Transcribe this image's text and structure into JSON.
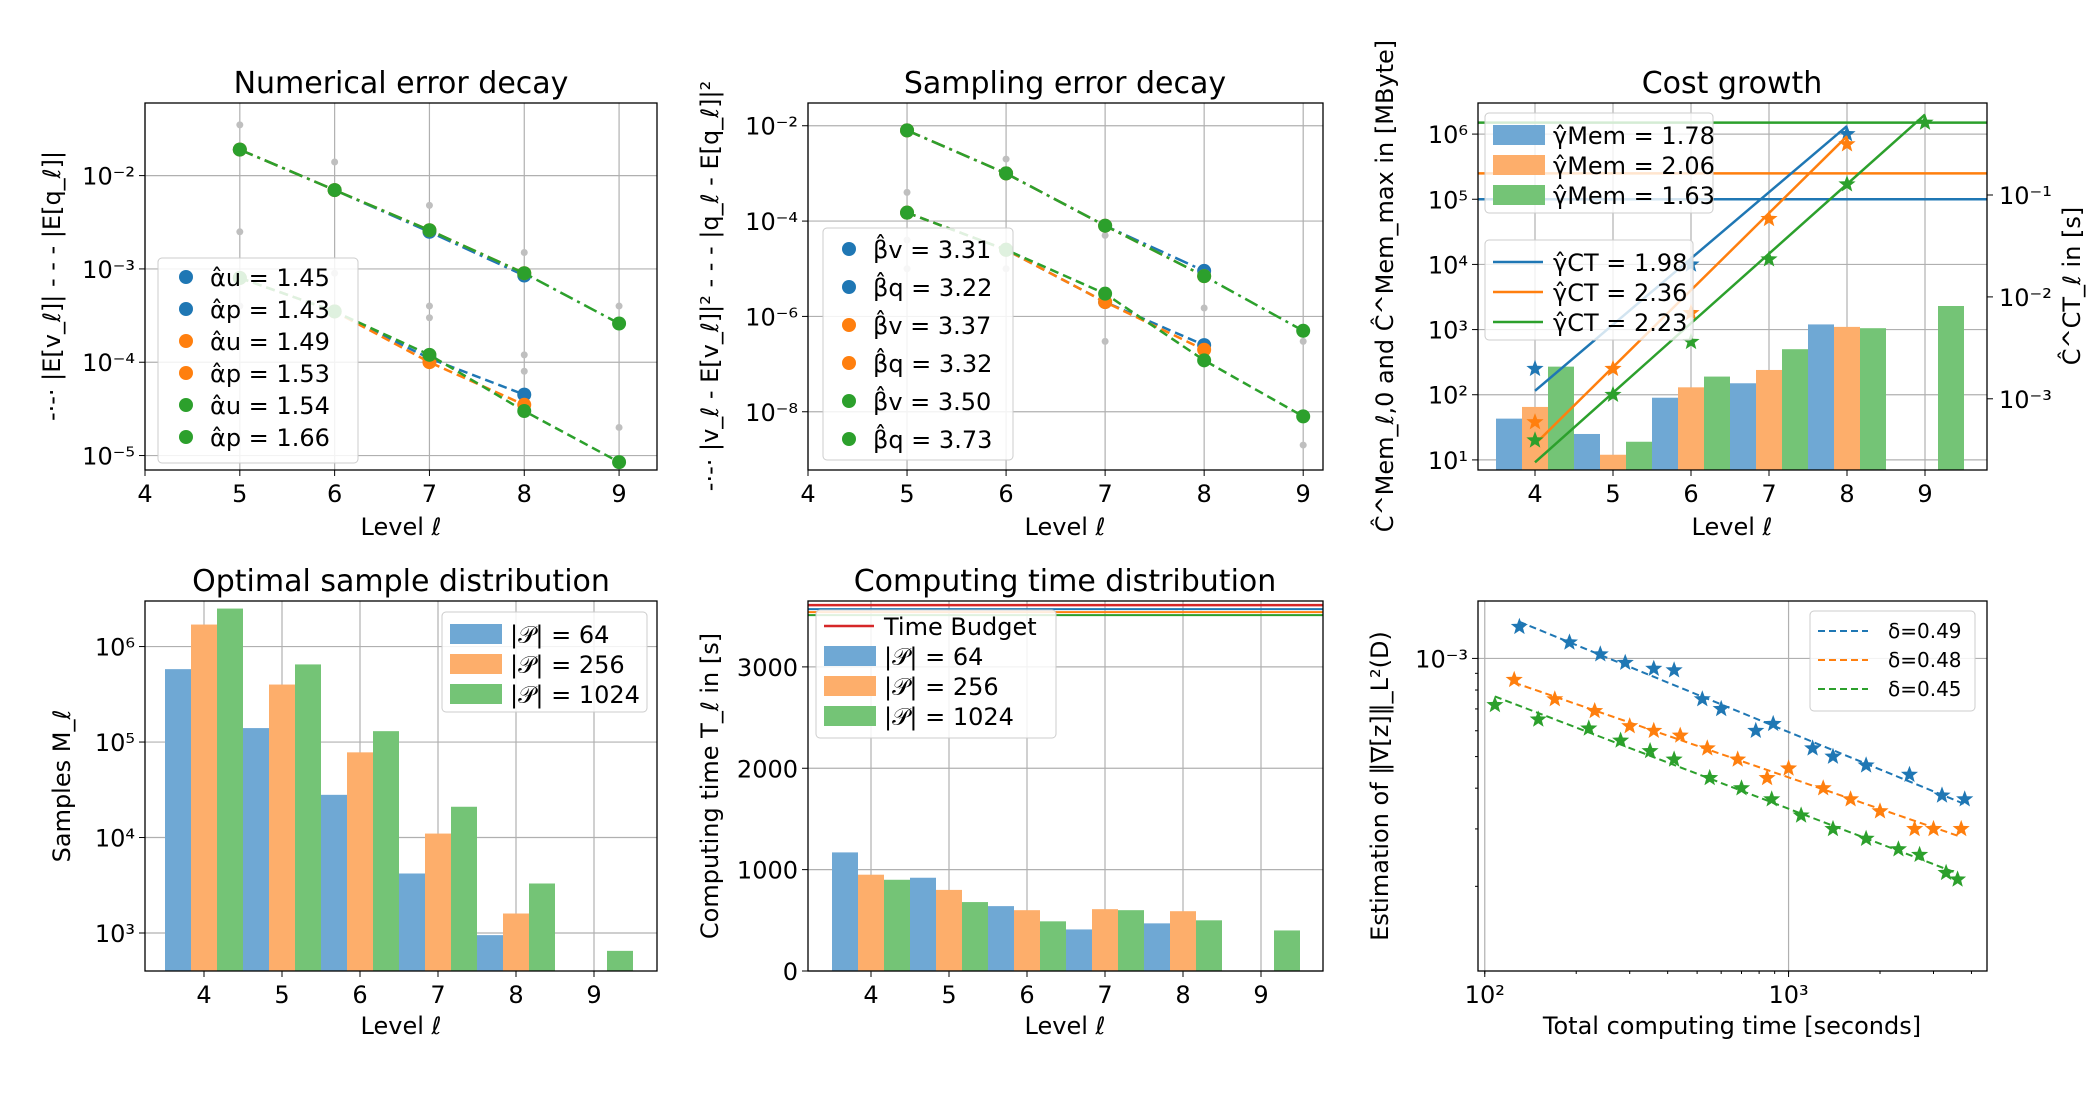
{
  "colors": {
    "blue": "#1f77b4",
    "orange": "#ff7f0e",
    "green": "#2ca02c",
    "red": "#d62728"
  },
  "chart_data": [
    {
      "id": "p1",
      "type": "scatter",
      "title": "Numerical error decay",
      "xlabel": "Level ℓ",
      "ylabel": "-·-· |E[v_ℓ]|    - - - |E[q_ℓ]|",
      "yscale": "log",
      "xlim": [
        4,
        9.4
      ],
      "ylim": [
        7e-06,
        0.06
      ],
      "xticks": [
        "4",
        "5",
        "6",
        "7",
        "8",
        "9"
      ],
      "yticks": [
        "10⁻⁵",
        "10⁻⁴",
        "10⁻³",
        "10⁻²"
      ],
      "legend": [
        "α̂u = 1.45",
        "α̂p = 1.43",
        "α̂u = 1.49",
        "α̂p = 1.53",
        "α̂u = 1.54",
        "α̂p = 1.66"
      ],
      "series": [
        {
          "color": "blue",
          "x": [
            5,
            6,
            7,
            8
          ],
          "y": [
            0.0008,
            0.00035,
            0.00011,
            4.5e-05
          ]
        },
        {
          "color": "blue",
          "x": [
            5,
            6,
            7,
            8
          ],
          "y": [
            0.019,
            0.007,
            0.0025,
            0.00085
          ]
        },
        {
          "color": "orange",
          "x": [
            5,
            6,
            7,
            8
          ],
          "y": [
            0.0008,
            0.00035,
            0.0001,
            3.5e-05
          ]
        },
        {
          "color": "orange",
          "x": [
            5,
            6,
            7,
            8
          ],
          "y": [
            0.019,
            0.007,
            0.0026,
            0.0009
          ]
        },
        {
          "color": "green",
          "x": [
            5,
            6,
            7,
            8,
            9
          ],
          "y": [
            0.0008,
            0.00035,
            0.00012,
            3e-05,
            8.5e-06
          ]
        },
        {
          "color": "green",
          "x": [
            5,
            6,
            7,
            8,
            9
          ],
          "y": [
            0.019,
            0.007,
            0.0026,
            0.0009,
            0.00026
          ]
        }
      ]
    },
    {
      "id": "p2",
      "type": "scatter",
      "title": "Sampling error decay",
      "xlabel": "Level ℓ",
      "ylabel": "-·-· |v_ℓ - E[v_ℓ]|²    - - - |q_ℓ - E[q_ℓ]|²",
      "yscale": "log",
      "xlim": [
        4,
        9.2
      ],
      "ylim": [
        6e-10,
        0.03
      ],
      "xticks": [
        "4",
        "5",
        "6",
        "7",
        "8",
        "9"
      ],
      "yticks": [
        "10⁻⁸",
        "10⁻⁶",
        "10⁻⁴",
        "10⁻²"
      ],
      "legend": [
        "β̂v = 3.31",
        "β̂q = 3.22",
        "β̂v = 3.37",
        "β̂q = 3.32",
        "β̂v = 3.50",
        "β̂q = 3.73"
      ],
      "series": [
        {
          "color": "blue",
          "x": [
            5,
            6,
            7,
            8
          ],
          "y": [
            0.008,
            0.001,
            8e-05,
            9e-06
          ]
        },
        {
          "color": "blue",
          "x": [
            5,
            6,
            7,
            8
          ],
          "y": [
            0.00015,
            2.5e-05,
            2e-06,
            2.5e-07
          ]
        },
        {
          "color": "orange",
          "x": [
            5,
            6,
            7,
            8
          ],
          "y": [
            0.008,
            0.001,
            8e-05,
            7e-06
          ]
        },
        {
          "color": "orange",
          "x": [
            5,
            6,
            7,
            8
          ],
          "y": [
            0.00015,
            2.5e-05,
            2e-06,
            2e-07
          ]
        },
        {
          "color": "green",
          "x": [
            5,
            6,
            7,
            8,
            9
          ],
          "y": [
            0.008,
            0.001,
            8e-05,
            7e-06,
            5e-07
          ]
        },
        {
          "color": "green",
          "x": [
            5,
            6,
            7,
            8,
            9
          ],
          "y": [
            0.00015,
            2.5e-05,
            3e-06,
            1.2e-07,
            8e-09
          ]
        }
      ]
    },
    {
      "id": "p3",
      "type": "bar",
      "title": "Cost growth",
      "xlabel": "Level ℓ",
      "ylabel": "Ĉ^Mem_ℓ,0  and  Ĉ^Mem_max  in  [MByte]",
      "ylabel_right": "Ĉ^CT_ℓ  in  [s]",
      "yscale": "log",
      "ylim": [
        7,
        3000000
      ],
      "ylim_right": [
        0.0002,
        0.8
      ],
      "categories": [
        "4",
        "5",
        "6",
        "7",
        "8",
        "9"
      ],
      "yticks": [
        "10¹",
        "10²",
        "10³",
        "10⁴",
        "10⁵",
        "10⁶"
      ],
      "yticks_right": [
        "10⁻³",
        "10⁻²",
        "10⁻¹"
      ],
      "legend_mem": [
        "γ̂Mem = 1.78",
        "γ̂Mem = 2.06",
        "γ̂Mem = 1.63"
      ],
      "legend_ct": [
        "γ̂CT = 1.98",
        "γ̂CT = 2.36",
        "γ̂CT = 2.23"
      ],
      "mem_bars": [
        {
          "color": "blue",
          "values": [
            43,
            25,
            90,
            150,
            1200,
            null
          ]
        },
        {
          "color": "orange",
          "values": [
            65,
            12,
            130,
            240,
            1100,
            null
          ]
        },
        {
          "color": "green",
          "values": [
            270,
            19,
            190,
            500,
            1050,
            2300
          ]
        }
      ],
      "mem_max": [
        100000,
        250000,
        1500000
      ],
      "ct_stars": [
        {
          "color": "blue",
          "values": [
            250,
            null,
            10000,
            null,
            1000000,
            null
          ]
        },
        {
          "color": "orange",
          "values": [
            38,
            250,
            1800,
            50000,
            700000,
            null
          ]
        },
        {
          "color": "green",
          "values": [
            20,
            100,
            650,
            12000,
            170000,
            1500000
          ]
        }
      ]
    },
    {
      "id": "p4",
      "type": "bar",
      "title": "Optimal sample distribution",
      "xlabel": "Level ℓ",
      "ylabel": "Samples  M_ℓ",
      "yscale": "log",
      "ylim": [
        400,
        3000000
      ],
      "categories": [
        "4",
        "5",
        "6",
        "7",
        "8",
        "9"
      ],
      "yticks": [
        "10³",
        "10⁴",
        "10⁵",
        "10⁶"
      ],
      "legend": [
        "|𝒫| = 64",
        "|𝒫| = 256",
        "|𝒫| = 1024"
      ],
      "series": [
        {
          "name": "|𝒫| = 64",
          "color": "blue",
          "values": [
            580000,
            140000,
            28000,
            4200,
            950,
            null
          ]
        },
        {
          "name": "|𝒫| = 256",
          "color": "orange",
          "values": [
            1700000,
            400000,
            78000,
            11000,
            1600,
            null
          ]
        },
        {
          "name": "|𝒫| = 1024",
          "color": "green",
          "values": [
            2500000,
            650000,
            130000,
            21000,
            3300,
            650
          ]
        }
      ]
    },
    {
      "id": "p5",
      "type": "bar",
      "title": "Computing time distribution",
      "xlabel": "Level ℓ",
      "ylabel": "Computing time  T_ℓ  in  [s]",
      "ylim": [
        0,
        3650
      ],
      "categories": [
        "4",
        "5",
        "6",
        "7",
        "8",
        "9"
      ],
      "yticks": [
        "0",
        "1000",
        "2000",
        "3000"
      ],
      "legend": [
        "Time Budget",
        "|𝒫| = 64",
        "|𝒫| = 256",
        "|𝒫| = 1024"
      ],
      "budget": 3600,
      "series": [
        {
          "name": "|𝒫| = 64",
          "color": "blue",
          "values": [
            1170,
            920,
            640,
            410,
            470,
            null
          ]
        },
        {
          "name": "|𝒫| = 256",
          "color": "orange",
          "values": [
            950,
            800,
            600,
            610,
            590,
            null
          ]
        },
        {
          "name": "|𝒫| = 1024",
          "color": "green",
          "values": [
            900,
            680,
            490,
            600,
            500,
            400
          ]
        }
      ]
    },
    {
      "id": "p6",
      "type": "scatter",
      "xlabel": "Total computing time [seconds]",
      "ylabel": "Estimation of  ‖∇[z]‖_L²(D)",
      "xscale": "log",
      "yscale": "log",
      "xlim": [
        95,
        4500
      ],
      "ylim": [
        0.00011,
        0.0015
      ],
      "xticks": [
        "10²",
        "10³"
      ],
      "yticks": [
        "10⁻³"
      ],
      "legend": [
        "δ=0.49",
        "δ=0.48",
        "δ=0.45"
      ],
      "series": [
        {
          "name": "δ=0.49",
          "color": "blue",
          "x": [
            130,
            190,
            240,
            290,
            360,
            420,
            520,
            600,
            780,
            890,
            1200,
            1400,
            1800,
            2500,
            3200,
            3800
          ],
          "y": [
            0.00125,
            0.00112,
            0.00103,
            0.00097,
            0.00093,
            0.00092,
            0.00075,
            0.0007,
            0.0006,
            0.00063,
            0.00053,
            0.0005,
            0.00047,
            0.00044,
            0.00038,
            0.00037
          ]
        },
        {
          "name": "δ=0.48",
          "color": "orange",
          "x": [
            125,
            170,
            230,
            300,
            360,
            440,
            540,
            680,
            850,
            1000,
            1300,
            1600,
            2000,
            2600,
            3000,
            3700
          ],
          "y": [
            0.00086,
            0.00075,
            0.00069,
            0.00062,
            0.0006,
            0.00058,
            0.00053,
            0.00049,
            0.00043,
            0.00046,
            0.0004,
            0.00037,
            0.00034,
            0.0003,
            0.0003,
            0.0003
          ]
        },
        {
          "name": "δ=0.45",
          "color": "green",
          "x": [
            108,
            150,
            220,
            280,
            350,
            420,
            550,
            700,
            880,
            1100,
            1400,
            1800,
            2300,
            2700,
            3300,
            3600
          ],
          "y": [
            0.00072,
            0.00065,
            0.00061,
            0.00056,
            0.00052,
            0.00049,
            0.00043,
            0.0004,
            0.00037,
            0.00033,
            0.0003,
            0.00028,
            0.00026,
            0.00025,
            0.00022,
            0.00021
          ]
        }
      ]
    }
  ]
}
